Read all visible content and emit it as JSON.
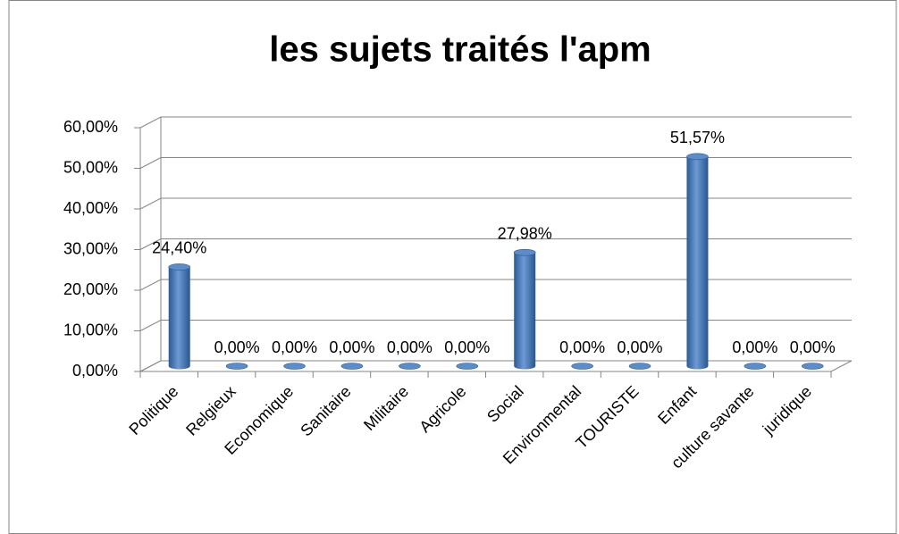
{
  "chart_data": {
    "type": "bar",
    "title": "les sujets traités l'apm",
    "categories": [
      "Politique",
      "Relgieux",
      "Economique",
      "Sanitaire",
      "Militaire",
      "Agricole",
      "Social",
      "Environmental",
      "TOURISTE",
      "Enfant",
      "culture savante",
      "juridique"
    ],
    "values": [
      24.4,
      0,
      0,
      0,
      0,
      0,
      27.98,
      0,
      0,
      51.57,
      0,
      0
    ],
    "value_labels": [
      "24,40%",
      "0,00%",
      "0,00%",
      "0,00%",
      "0,00%",
      "0,00%",
      "27,98%",
      "0,00%",
      "0,00%",
      "51,57%",
      "0,00%",
      "0,00%"
    ],
    "color": "#4f81bd",
    "ylim": [
      0,
      60
    ],
    "yticks": [
      {
        "value": 0,
        "label": "0,00%"
      },
      {
        "value": 10,
        "label": "10,00%"
      },
      {
        "value": 20,
        "label": "20,00%"
      },
      {
        "value": 30,
        "label": "30,00%"
      },
      {
        "value": 40,
        "label": "40,00%"
      },
      {
        "value": 50,
        "label": "50,00%"
      },
      {
        "value": 60,
        "label": "60,00%"
      }
    ],
    "grid": true
  }
}
